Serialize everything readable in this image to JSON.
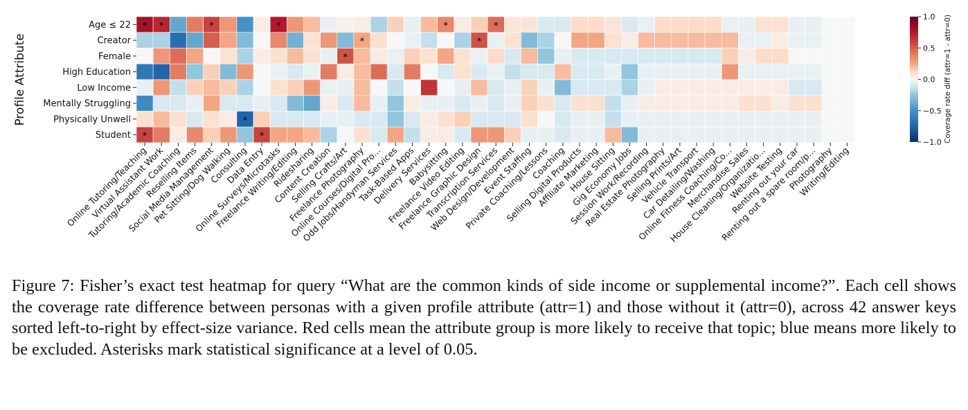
{
  "figure": {
    "caption_label": "Figure 7:",
    "caption_text": "Fisher’s exact test heatmap for query “What are the common kinds of side income or supplemental income?”. Each cell shows the coverage rate difference between personas with a given profile attribute (attr=1) and those without it (attr=0), across 42 answer keys sorted left-to-right by effect-size variance. Red cells mean the attribute group is more likely to receive that topic; blue means more likely to be excluded. Asterisks mark statistical significance at a level of 0.05."
  },
  "chart_data": {
    "type": "heatmap",
    "ylabel": "Profile Attribute",
    "colorbar_label": "Coverage rate diff (attr=1 - attr=0)",
    "colorbar_ticks": [
      "1.0",
      "0.5",
      "0.0",
      "−0.5",
      "−1.0"
    ],
    "colorbar_tick_values": [
      1.0,
      0.5,
      0.0,
      -0.5,
      -1.0
    ],
    "vmin": -1.0,
    "vmax": 1.0,
    "colormap": "RdBu_r",
    "colors": {
      "high": "#67001f",
      "mid": "#f7f7f7",
      "low": "#053061"
    },
    "rows": [
      "Age ≤ 22",
      "Creator",
      "Female",
      "High Education",
      "Low Income",
      "Mentally Struggling",
      "Physically Unwell",
      "Student"
    ],
    "columns": [
      "Online Tutoring/Teaching",
      "Virtual Assistant Work",
      "Tutoring/Academic Coaching",
      "Reselling Items",
      "Social Media Management",
      "Pet Sitting/Dog Walking",
      "Consulting",
      "Data Entry",
      "Online Surveys/Microtasks",
      "Freelance Writing/Editing",
      "Ridesharing",
      "Content Creation",
      "Selling Crafts/Art",
      "Freelance Photography",
      "Online Courses/Digital Pro...",
      "Odd Jobs/Handyman Services",
      "Task-Based Apps",
      "Delivery Services",
      "Babysitting",
      "Freelance Video Editing",
      "Freelance Graphic Design",
      "Transcription Services",
      "Web Design/Development",
      "Event Staffing",
      "Private Coaching/Lessons",
      "Coaching",
      "Selling Digital Products",
      "Affiliate Marketing",
      "House Sitting",
      "Gig Economy Jobs",
      "Session Work/Recording",
      "Real Estate Photography",
      "Selling Prints/Art",
      "Vehicle Transport",
      "Car Detailing/Washing",
      "Online Fitness Coaching/Co...",
      "Merchandise Sales",
      "House Cleaning/Organizatio...",
      "Website Testing",
      "Renting out your car",
      "Renting out a spare room/p...",
      "Photography",
      "Writing/Editing"
    ],
    "values": [
      [
        0.8,
        0.7,
        -0.4,
        0.4,
        0.6,
        0.3,
        -0.5,
        0.05,
        0.75,
        0.3,
        0.2,
        -0.05,
        0.03,
        0.05,
        -0.2,
        0.15,
        -0.05,
        0.2,
        0.35,
        0.05,
        0.15,
        0.45,
        0.08,
        0.08,
        -0.1,
        -0.1,
        0.12,
        0.12,
        0.08,
        -0.1,
        -0.05,
        0.12,
        0.12,
        0.12,
        0.12,
        -0.05,
        -0.05,
        0.1,
        0.1,
        -0.05,
        -0.05,
        0.0,
        0.0
      ],
      [
        -0.2,
        -0.2,
        -0.7,
        -0.4,
        0.5,
        0.25,
        -0.3,
        0.0,
        0.35,
        -0.35,
        0.1,
        0.3,
        -0.3,
        0.25,
        0.1,
        0.0,
        -0.05,
        -0.15,
        0.0,
        -0.2,
        0.55,
        -0.05,
        0.1,
        -0.3,
        -0.2,
        0.0,
        0.25,
        0.25,
        0.1,
        0.05,
        0.2,
        0.2,
        0.2,
        0.2,
        0.2,
        0.2,
        -0.05,
        -0.05,
        0.05,
        -0.05,
        -0.05,
        0.0,
        0.0
      ],
      [
        0.0,
        0.3,
        0.45,
        0.25,
        0.0,
        0.1,
        -0.2,
        0.05,
        0.1,
        0.2,
        0.1,
        -0.05,
        0.55,
        0.2,
        0.05,
        -0.05,
        0.15,
        0.1,
        0.25,
        0.1,
        -0.05,
        0.12,
        -0.1,
        0.2,
        -0.25,
        -0.05,
        -0.1,
        -0.1,
        -0.1,
        -0.1,
        -0.1,
        -0.1,
        -0.1,
        -0.1,
        -0.1,
        0.15,
        0.05,
        0.12,
        0.12,
        0.0,
        0.0,
        0.0,
        0.0
      ],
      [
        -0.65,
        -0.75,
        0.4,
        -0.25,
        0.15,
        -0.3,
        0.3,
        0.0,
        -0.05,
        -0.1,
        -0.05,
        0.4,
        0.05,
        0.2,
        0.45,
        -0.1,
        0.4,
        0.0,
        -0.1,
        0.1,
        -0.1,
        -0.05,
        -0.15,
        -0.1,
        -0.1,
        0.2,
        -0.1,
        -0.1,
        -0.05,
        -0.25,
        -0.05,
        -0.05,
        -0.05,
        -0.05,
        -0.05,
        0.3,
        -0.05,
        -0.05,
        -0.05,
        -0.05,
        -0.05,
        0.0,
        0.0
      ],
      [
        -0.05,
        0.3,
        -0.15,
        0.15,
        0.2,
        0.15,
        -0.2,
        0.0,
        0.1,
        0.15,
        0.3,
        -0.05,
        -0.05,
        0.2,
        0.0,
        -0.15,
        0.0,
        0.65,
        0.0,
        -0.05,
        0.2,
        -0.1,
        -0.05,
        0.15,
        -0.05,
        -0.3,
        -0.1,
        -0.1,
        -0.1,
        -0.2,
        -0.05,
        0.05,
        0.05,
        0.05,
        0.05,
        0.05,
        0.05,
        0.05,
        0.05,
        -0.1,
        -0.1,
        0.0,
        0.0
      ],
      [
        -0.55,
        -0.1,
        -0.1,
        -0.05,
        0.25,
        -0.1,
        -0.1,
        -0.05,
        -0.1,
        -0.3,
        -0.4,
        0.05,
        -0.1,
        0.2,
        -0.05,
        -0.25,
        0.05,
        -0.05,
        -0.05,
        -0.1,
        -0.05,
        -0.1,
        -0.05,
        0.15,
        0.1,
        -0.1,
        0.1,
        0.1,
        -0.15,
        -0.05,
        0.05,
        0.05,
        0.05,
        0.05,
        0.05,
        0.05,
        0.1,
        0.1,
        0.05,
        0.1,
        0.1,
        0.0,
        0.0
      ],
      [
        0.1,
        0.2,
        0.1,
        -0.1,
        0.1,
        0.05,
        -0.75,
        0.15,
        -0.1,
        -0.1,
        -0.1,
        -0.05,
        -0.05,
        -0.1,
        -0.1,
        -0.25,
        -0.1,
        0.05,
        0.1,
        0.15,
        -0.1,
        -0.1,
        -0.1,
        0.1,
        0.0,
        -0.1,
        -0.05,
        -0.05,
        -0.15,
        -0.05,
        -0.05,
        -0.05,
        -0.05,
        -0.05,
        -0.05,
        -0.05,
        -0.05,
        -0.05,
        -0.05,
        -0.05,
        -0.05,
        0.0,
        0.0
      ],
      [
        0.6,
        0.4,
        0.05,
        0.35,
        0.15,
        0.3,
        -0.25,
        0.6,
        0.25,
        0.25,
        0.2,
        -0.2,
        0.0,
        0.1,
        -0.1,
        0.25,
        -0.15,
        0.05,
        0.05,
        -0.1,
        0.3,
        0.3,
        0.15,
        -0.05,
        -0.05,
        -0.1,
        -0.05,
        -0.05,
        0.2,
        -0.3,
        -0.05,
        -0.05,
        -0.05,
        -0.05,
        -0.05,
        -0.05,
        -0.05,
        -0.05,
        -0.05,
        -0.05,
        -0.05,
        0.0,
        0.0
      ]
    ],
    "significance_marker": "*",
    "significant_cells": [
      [
        0,
        0
      ],
      [
        0,
        1
      ],
      [
        0,
        4
      ],
      [
        0,
        8
      ],
      [
        0,
        18
      ],
      [
        0,
        21
      ],
      [
        1,
        13
      ],
      [
        1,
        20
      ],
      [
        2,
        12
      ],
      [
        6,
        6
      ],
      [
        7,
        0
      ],
      [
        7,
        7
      ]
    ]
  }
}
